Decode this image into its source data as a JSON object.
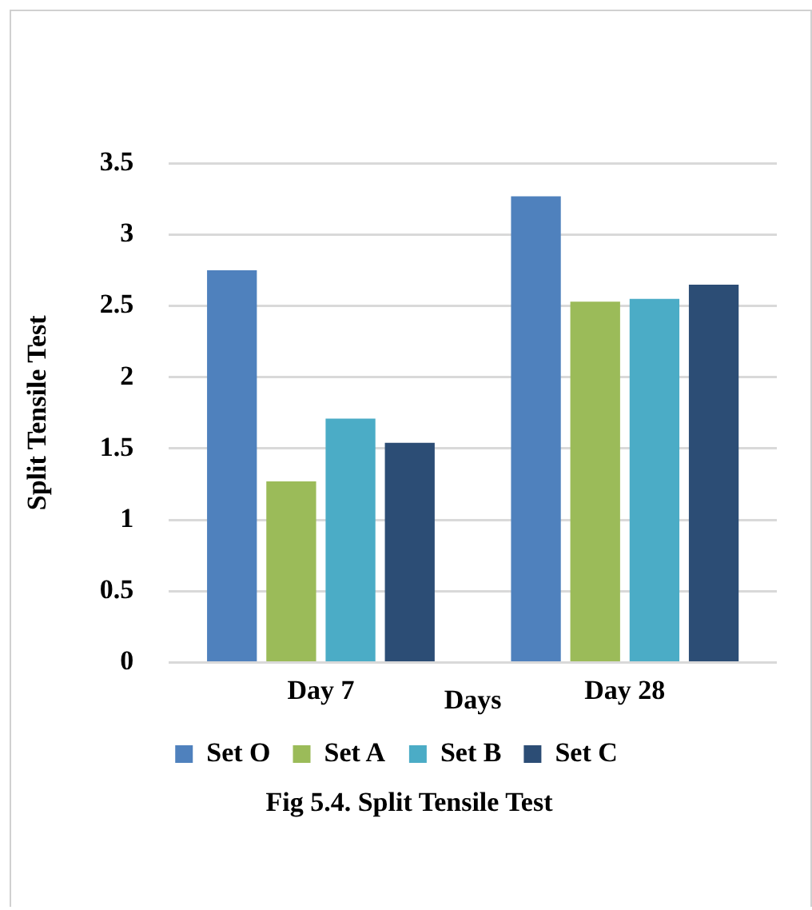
{
  "chart_data": {
    "type": "bar",
    "ylabel": "Split Tensile Test",
    "xlabel": "Days",
    "categories": [
      "Day 7",
      "Day 28"
    ],
    "series": [
      {
        "name": "Set O",
        "color": "#4f81bd",
        "values": [
          2.75,
          3.27
        ]
      },
      {
        "name": "Set A",
        "color": "#9bbb59",
        "values": [
          1.27,
          2.53
        ]
      },
      {
        "name": "Set B",
        "color": "#4bacc6",
        "values": [
          1.71,
          2.55
        ]
      },
      {
        "name": "Set C",
        "color": "#2c4d75",
        "values": [
          1.54,
          2.65
        ]
      }
    ],
    "ylim": [
      0,
      3.5
    ],
    "yticks": [
      0,
      0.5,
      1,
      1.5,
      2,
      2.5,
      3,
      3.5
    ],
    "grid": "y",
    "legend": "bottom",
    "annotations": [
      "Fig 5.4. Split Tensile Test"
    ]
  }
}
